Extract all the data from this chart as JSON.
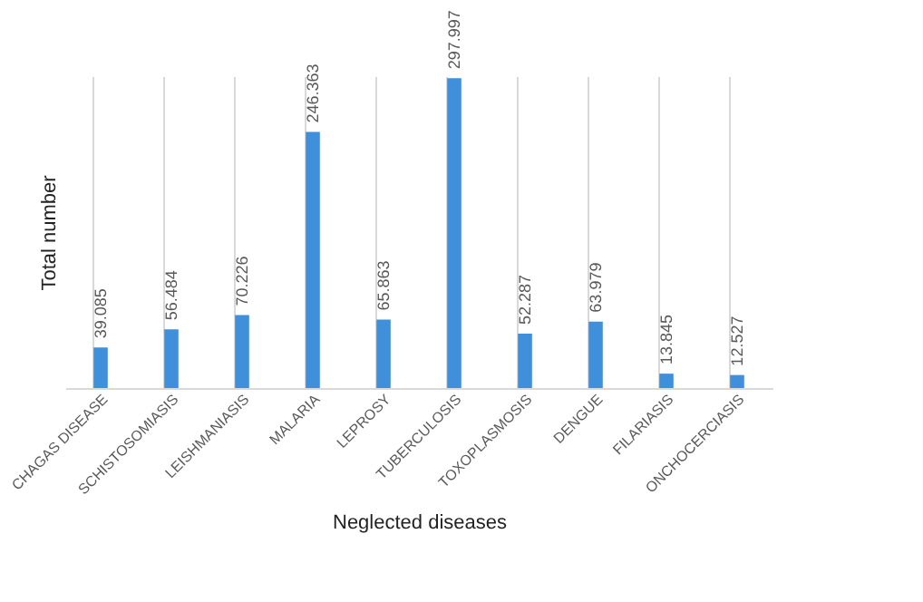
{
  "chart_data": {
    "type": "bar",
    "xlabel": "Neglected diseases",
    "ylabel": "Total number",
    "categories": [
      "CHAGAS DISEASE",
      "SCHISTOSOMIASIS",
      "LEISHMANIASIS",
      "MALARIA",
      "LEPROSY",
      "TUBERCULOSIS",
      "TOXOPLASMOSIS",
      "DENGUE",
      "FILARIASIS",
      "ONCHOCERCIASIS"
    ],
    "values": [
      39.085,
      56.484,
      70.226,
      246.363,
      65.863,
      297.997,
      52.287,
      63.979,
      13.845,
      12.527
    ],
    "color": "#3f8fdb",
    "data_labels": true,
    "grid": "x"
  }
}
